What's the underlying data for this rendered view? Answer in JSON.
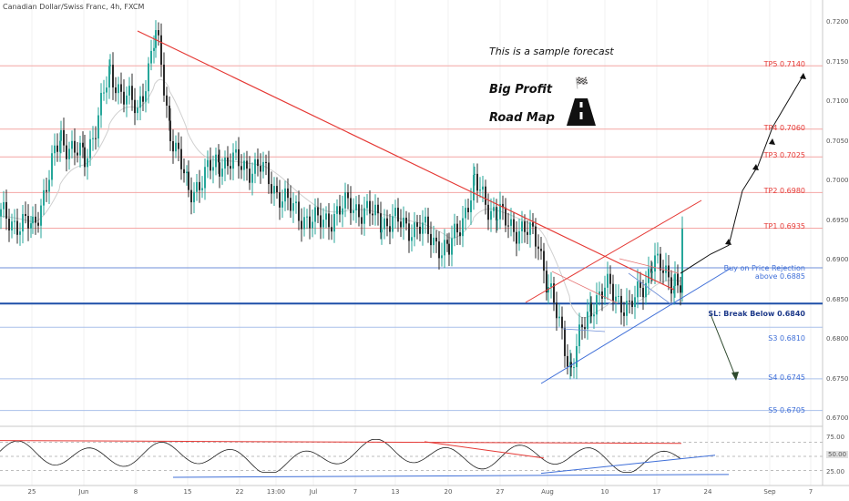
{
  "header": {
    "title": "Canadian Dollar/Swiss Franc, 4h, FXCM"
  },
  "annotations": {
    "sample": "This is a sample forecast",
    "big_profit": "Big Profit",
    "road_map": "Road Map"
  },
  "icons": {
    "flag": "checkered-flag-icon",
    "road": "road-icon"
  },
  "levels": {
    "tp5": "TP5 0.7140",
    "tp4": "TP4 0.7060",
    "tp3": "TP3 0.7025",
    "tp2": "TP2 0.6980",
    "tp1": "TP1 0.6935",
    "buy_1": "Buy on Price Rejection",
    "buy_2": "above 0.6885",
    "sl": "SL: Break Below 0.6840",
    "s3": "S3 0.6810",
    "s4": "S4 0.6745",
    "s5": "S5 0.6705"
  },
  "colors": {
    "target": "#e53935",
    "support": "#3f6fd8",
    "stop": "#1e4fa8",
    "bull": "#26a69a",
    "bear": "#2b2b2b"
  },
  "chart_data": {
    "type": "candlestick",
    "title": "Canadian Dollar/Swiss Franc, 4h, FXCM",
    "xlabel": "",
    "ylabel": "",
    "ylim": [
      0.6685,
      0.7225
    ],
    "x_ticks": [
      "25",
      "Jun",
      "8",
      "15",
      "22",
      "13:00",
      "Jul",
      "7",
      "13",
      "20",
      "27",
      "Aug",
      "10",
      "17",
      "24",
      "Sep",
      "7"
    ],
    "y_ticks": [
      "0.72000",
      "0.71500",
      "0.71000",
      "0.70500",
      "0.70000",
      "0.69500",
      "0.69000",
      "0.68500",
      "0.68000",
      "0.67500",
      "0.67000"
    ],
    "close_path": [
      {
        "x": "May 22",
        "y": 0.695
      },
      {
        "x": "May 25",
        "y": 0.6935
      },
      {
        "x": "May 29",
        "y": 0.705
      },
      {
        "x": "Jun 1",
        "y": 0.702
      },
      {
        "x": "Jun 3",
        "y": 0.713
      },
      {
        "x": "Jun 5",
        "y": 0.708
      },
      {
        "x": "Jun 8",
        "y": 0.718
      },
      {
        "x": "Jun 10",
        "y": 0.706
      },
      {
        "x": "Jun 12",
        "y": 0.698
      },
      {
        "x": "Jun 15",
        "y": 0.702
      },
      {
        "x": "Jun 19",
        "y": 0.701
      },
      {
        "x": "Jun 24",
        "y": 0.696
      },
      {
        "x": "Jun 29",
        "y": 0.694
      },
      {
        "x": "Jul 2",
        "y": 0.6965
      },
      {
        "x": "Jul 7",
        "y": 0.6945
      },
      {
        "x": "Jul 10",
        "y": 0.6935
      },
      {
        "x": "Jul 13",
        "y": 0.6905
      },
      {
        "x": "Jul 16",
        "y": 0.699
      },
      {
        "x": "Jul 20",
        "y": 0.695
      },
      {
        "x": "Jul 23",
        "y": 0.692
      },
      {
        "x": "Jul 27",
        "y": 0.686
      },
      {
        "x": "Jul 30",
        "y": 0.676
      },
      {
        "x": "Aug 2",
        "y": 0.684
      },
      {
        "x": "Aug 5",
        "y": 0.686
      },
      {
        "x": "Aug 8",
        "y": 0.683
      },
      {
        "x": "Aug 11",
        "y": 0.689
      },
      {
        "x": "Aug 14",
        "y": 0.687
      },
      {
        "x": "Aug 17",
        "y": 0.6855
      },
      {
        "x": "Aug 19",
        "y": 0.692
      }
    ],
    "forecast_path": [
      0.6885,
      0.6925,
      0.698,
      0.7025,
      0.706,
      0.714
    ],
    "levels": [
      {
        "name": "TP5",
        "value": 0.714
      },
      {
        "name": "TP4",
        "value": 0.706
      },
      {
        "name": "TP3",
        "value": 0.7025
      },
      {
        "name": "TP2",
        "value": 0.698
      },
      {
        "name": "TP1",
        "value": 0.6935
      },
      {
        "name": "Buy",
        "value": 0.6885
      },
      {
        "name": "SL",
        "value": 0.684
      },
      {
        "name": "S3",
        "value": 0.681
      },
      {
        "name": "S4",
        "value": 0.6745
      },
      {
        "name": "S5",
        "value": 0.6705
      }
    ],
    "oscillator": {
      "y_ticks": [
        "75.00",
        "50.00",
        "25.00"
      ],
      "highlighted": "50.00"
    }
  }
}
